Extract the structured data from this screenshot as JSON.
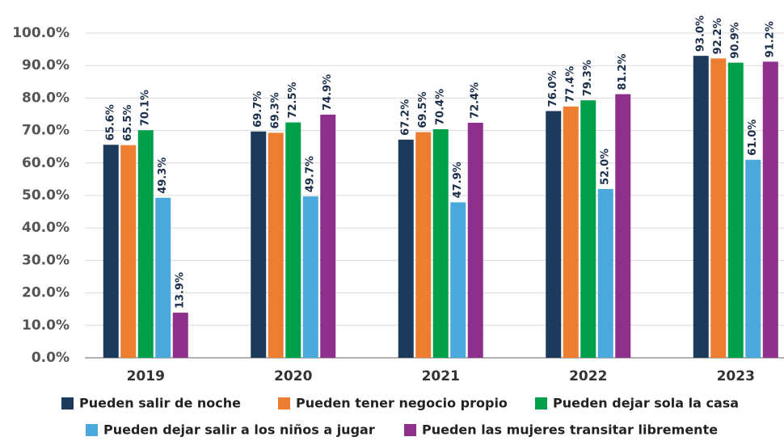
{
  "chart_data": {
    "type": "bar",
    "categories": [
      "2019",
      "2020",
      "2021",
      "2022",
      "2023"
    ],
    "series": [
      {
        "name": "Pueden salir de noche",
        "color": "#1b3a5c",
        "values": [
          65.6,
          69.7,
          67.2,
          76.0,
          93.0
        ],
        "value_labels": [
          "65.6%",
          "69.7%",
          "67.2%",
          "76.0%",
          "93.0%"
        ]
      },
      {
        "name": "Pueden tener negocio propio",
        "color": "#ed7d31",
        "values": [
          65.5,
          69.3,
          69.5,
          77.4,
          92.2
        ],
        "value_labels": [
          "65.5%",
          "69.3%",
          "69.5%",
          "77.4%",
          "92.2%"
        ]
      },
      {
        "name": "Pueden dejar sola la casa",
        "color": "#00a04a",
        "values": [
          70.1,
          72.5,
          70.4,
          79.3,
          90.9
        ],
        "value_labels": [
          "70.1%",
          "72.5%",
          "70.4%",
          "79.3%",
          "90.9%"
        ]
      },
      {
        "name": "Pueden dejar salir a los niños a jugar",
        "color": "#4aa8dc",
        "values": [
          49.3,
          49.7,
          47.9,
          52.0,
          61.0
        ],
        "value_labels": [
          "49.3%",
          "49.7%",
          "47.9%",
          "52.0%",
          "61.0%"
        ]
      },
      {
        "name": "Pueden las mujeres transitar libremente",
        "color": "#8e2f8c",
        "values": [
          13.9,
          74.9,
          72.4,
          81.2,
          91.2
        ],
        "value_labels": [
          "13.9%",
          "74.9%",
          "72.4%",
          "81.2%",
          "91.2%"
        ]
      }
    ],
    "ylim": [
      0,
      100
    ],
    "yticks": [
      {
        "value": 0,
        "label": "0.0%"
      },
      {
        "value": 10,
        "label": "10.0%"
      },
      {
        "value": 20,
        "label": "20.0%"
      },
      {
        "value": 30,
        "label": "30.0%"
      },
      {
        "value": 40,
        "label": "40.0%"
      },
      {
        "value": 50,
        "label": "50.0%"
      },
      {
        "value": 60,
        "label": "60.0%"
      },
      {
        "value": 70,
        "label": "70.0%"
      },
      {
        "value": 80,
        "label": "80.0%"
      },
      {
        "value": 90,
        "label": "90.0%"
      },
      {
        "value": 100,
        "label": "100.0%"
      }
    ],
    "grid": true
  }
}
